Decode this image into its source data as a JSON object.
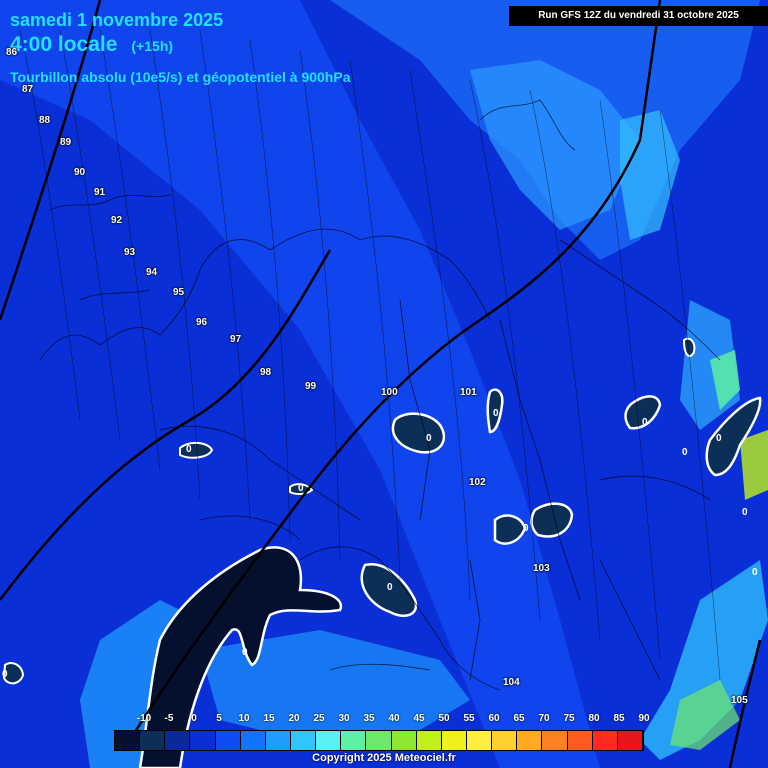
{
  "header": {
    "date_line": "samedi 1 novembre 2025",
    "time_line": "4:00 locale",
    "lead_time": "(+15h)",
    "subtitle": "Tourbillon absolu (10e5/s) et géopotentiel à 900hPa",
    "run_info": "Run GFS 12Z du vendredi 31 octobre 2025"
  },
  "isolines": [
    "86",
    "87",
    "88",
    "89",
    "90",
    "91",
    "92",
    "93",
    "94",
    "95",
    "96",
    "97",
    "98",
    "99",
    "100",
    "101",
    "102",
    "103",
    "104",
    "105"
  ],
  "vorticity_zero_labels": [
    "0",
    "0",
    "0",
    "0",
    "0",
    "0",
    "0",
    "0",
    "0",
    "0",
    "0",
    "0",
    "0"
  ],
  "legend": {
    "ticks": [
      "-10",
      "-5",
      "0",
      "5",
      "10",
      "15",
      "20",
      "25",
      "30",
      "35",
      "40",
      "45",
      "50",
      "55",
      "60",
      "65",
      "70",
      "75",
      "80",
      "85",
      "90"
    ],
    "colors": [
      "#05102e",
      "#0b2f57",
      "#0a2a98",
      "#0a2fd6",
      "#0f4cf2",
      "#1273ff",
      "#1f9cff",
      "#30c7ff",
      "#58f0f0",
      "#5ef0a4",
      "#6fe86a",
      "#8ee830",
      "#bff01a",
      "#eef21a",
      "#fff040",
      "#ffd030",
      "#ffaa20",
      "#ff8020",
      "#ff5a20",
      "#ff2a20",
      "#e8141e"
    ]
  },
  "footer": {
    "copyright": "Copyright 2025 Meteociel.fr"
  }
}
